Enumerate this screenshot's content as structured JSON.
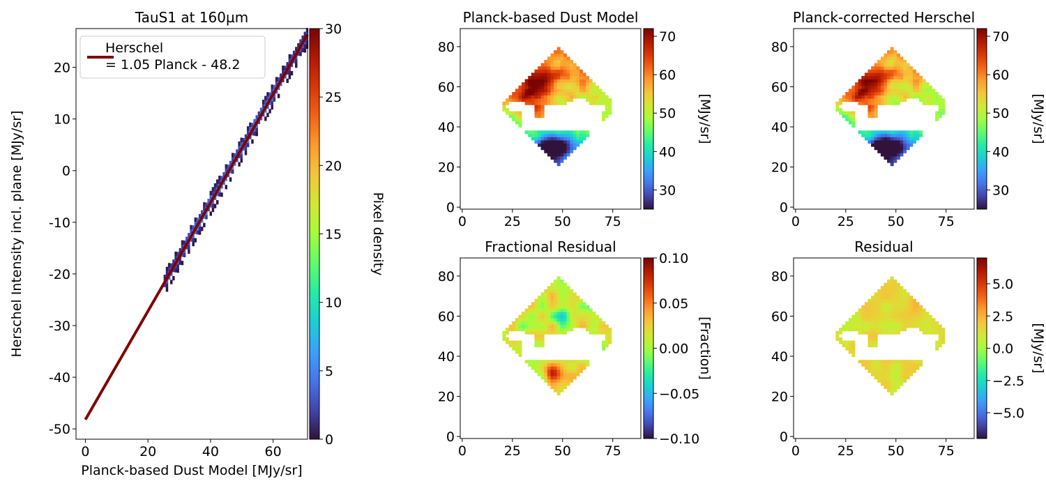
{
  "colors": {
    "fit_line": "#800000",
    "axes": "#000000",
    "background": "#ffffff",
    "colormap": "turbo"
  },
  "chart_data": [
    {
      "id": "scatter",
      "type": "heatmap",
      "title": "TauS1 at 160µm",
      "xlabel": "Planck-based Dust Model [MJy/sr]",
      "ylabel": "Herschel Intensity incl. plane [MJy/sr]",
      "xlim": [
        -3,
        71
      ],
      "ylim": [
        -52,
        27.5
      ],
      "xticks": [
        0,
        20,
        40,
        60
      ],
      "yticks": [
        -50,
        -40,
        -30,
        -20,
        -10,
        0,
        10,
        20
      ],
      "density_band": {
        "x_range": [
          25,
          71
        ],
        "slope": 1.05,
        "intercept": -48.2
      },
      "fit": {
        "slope": 1.05,
        "intercept": -48.2,
        "x_range": [
          0,
          71
        ]
      },
      "legend": {
        "position": "top-left",
        "line1": "Herschel",
        "line2": "= 1.05 Planck - 48.2"
      },
      "colorbar": {
        "label": "Pixel density",
        "range": [
          0,
          30
        ],
        "ticks": [
          0,
          5,
          10,
          15,
          20,
          25,
          30
        ]
      }
    },
    {
      "id": "model",
      "type": "heatmap",
      "title": "Planck-based Dust Model",
      "xlim": [
        -1,
        89
      ],
      "ylim": [
        -1,
        89
      ],
      "xticks": [
        0,
        25,
        50,
        75
      ],
      "yticks": [
        0,
        20,
        40,
        60,
        80
      ],
      "colorbar": {
        "label": "[MJy/sr]",
        "range": [
          25,
          72
        ],
        "ticks": [
          "30",
          "40",
          "50",
          "60",
          "70"
        ]
      }
    },
    {
      "id": "corrected",
      "type": "heatmap",
      "title": "Planck-corrected Herschel",
      "xlim": [
        -1,
        89
      ],
      "ylim": [
        -1,
        89
      ],
      "xticks": [
        0,
        25,
        50,
        75
      ],
      "yticks": [
        0,
        20,
        40,
        60,
        80
      ],
      "colorbar": {
        "label": "[MJy/sr]",
        "range": [
          25,
          72
        ],
        "ticks": [
          "30",
          "40",
          "50",
          "60",
          "70"
        ]
      }
    },
    {
      "id": "fracres",
      "type": "heatmap",
      "title": "Fractional Residual",
      "xlim": [
        -1,
        89
      ],
      "ylim": [
        -1,
        89
      ],
      "xticks": [
        0,
        25,
        50,
        75
      ],
      "yticks": [
        0,
        20,
        40,
        60,
        80
      ],
      "colorbar": {
        "label": "[Fraction]",
        "range": [
          -0.1,
          0.1
        ],
        "ticks": [
          "−0.10",
          "−0.05",
          "0.00",
          "0.05",
          "0.10"
        ]
      }
    },
    {
      "id": "resid",
      "type": "heatmap",
      "title": "Residual",
      "xlim": [
        -1,
        89
      ],
      "ylim": [
        -1,
        89
      ],
      "xticks": [
        0,
        25,
        50,
        75
      ],
      "yticks": [
        0,
        20,
        40,
        60,
        80
      ],
      "colorbar": {
        "label": "[MJy/sr]",
        "range": [
          -7,
          7
        ],
        "ticks": [
          "−5.0",
          "−2.5",
          "0.0",
          "2.5",
          "5.0"
        ]
      }
    }
  ]
}
